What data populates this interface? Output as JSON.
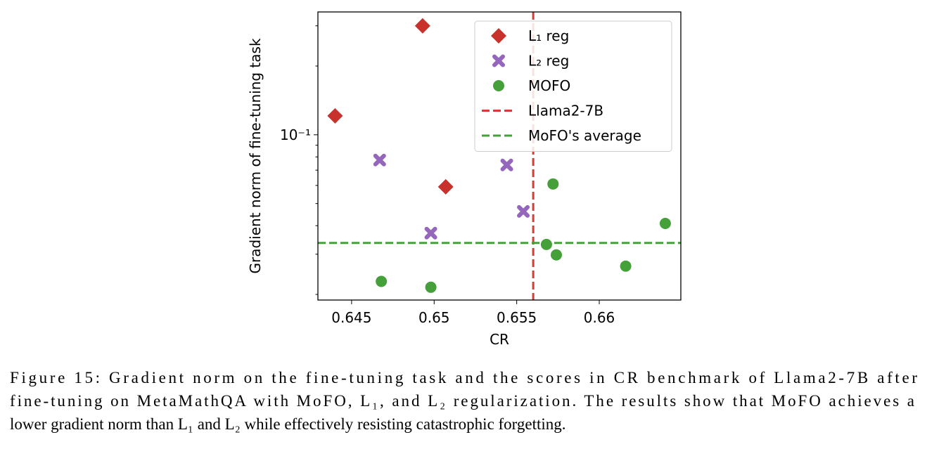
{
  "chart_data": {
    "type": "scatter",
    "xlabel": "CR",
    "ylabel": "Gradient norm of fine-tuning task",
    "xlim": [
      0.64296,
      0.66494
    ],
    "xticks": [
      0.645,
      0.65,
      0.655,
      0.66
    ],
    "ylog": true,
    "ylim": [
      0.0189,
      0.345
    ],
    "yticks": [
      {
        "value": 0.1,
        "label": "10⁻¹"
      }
    ],
    "yminorticks": [
      0.02,
      0.03,
      0.04,
      0.05,
      0.06,
      0.07,
      0.08,
      0.09,
      0.2,
      0.3
    ],
    "series": [
      {
        "name": "L₁ reg",
        "color": "#c8312c",
        "marker": "diamond",
        "x": [
          0.6493,
          0.644,
          0.6507
        ],
        "values": [
          0.3,
          0.121,
          0.0592
        ]
      },
      {
        "name": "L₂ reg",
        "color": "#9467bd",
        "marker": "cross",
        "x": [
          0.6467,
          0.6544,
          0.6554,
          0.6498
        ],
        "values": [
          0.0775,
          0.0738,
          0.0462,
          0.0371
        ]
      },
      {
        "name": "MOFO",
        "color": "#45a03a",
        "marker": "circle",
        "x": [
          0.6572,
          0.664,
          0.6568,
          0.6574,
          0.6616,
          0.6468,
          0.6498
        ],
        "values": [
          0.0609,
          0.0409,
          0.0331,
          0.0298,
          0.0266,
          0.0228,
          0.0215
        ]
      }
    ],
    "reference_lines": [
      {
        "name": "Llama2-7B",
        "color": "#d83a34",
        "x": 0.656
      },
      {
        "name": "MoFO's average",
        "color": "#45a03a",
        "y": 0.0336
      }
    ],
    "legend": "upper right"
  },
  "caption": {
    "lines": [
      "Figure 15: Gradient norm on the fine-tuning task and the scores in CR benchmark of Llama2-7B after",
      "fine-tuning on MetaMathQA with MoFO, L₁, and L₂ regularization. The results show that MoFO achieves a",
      "lower gradient norm than L₁ and L₂ while effectively resisting catastrophic forgetting."
    ]
  }
}
